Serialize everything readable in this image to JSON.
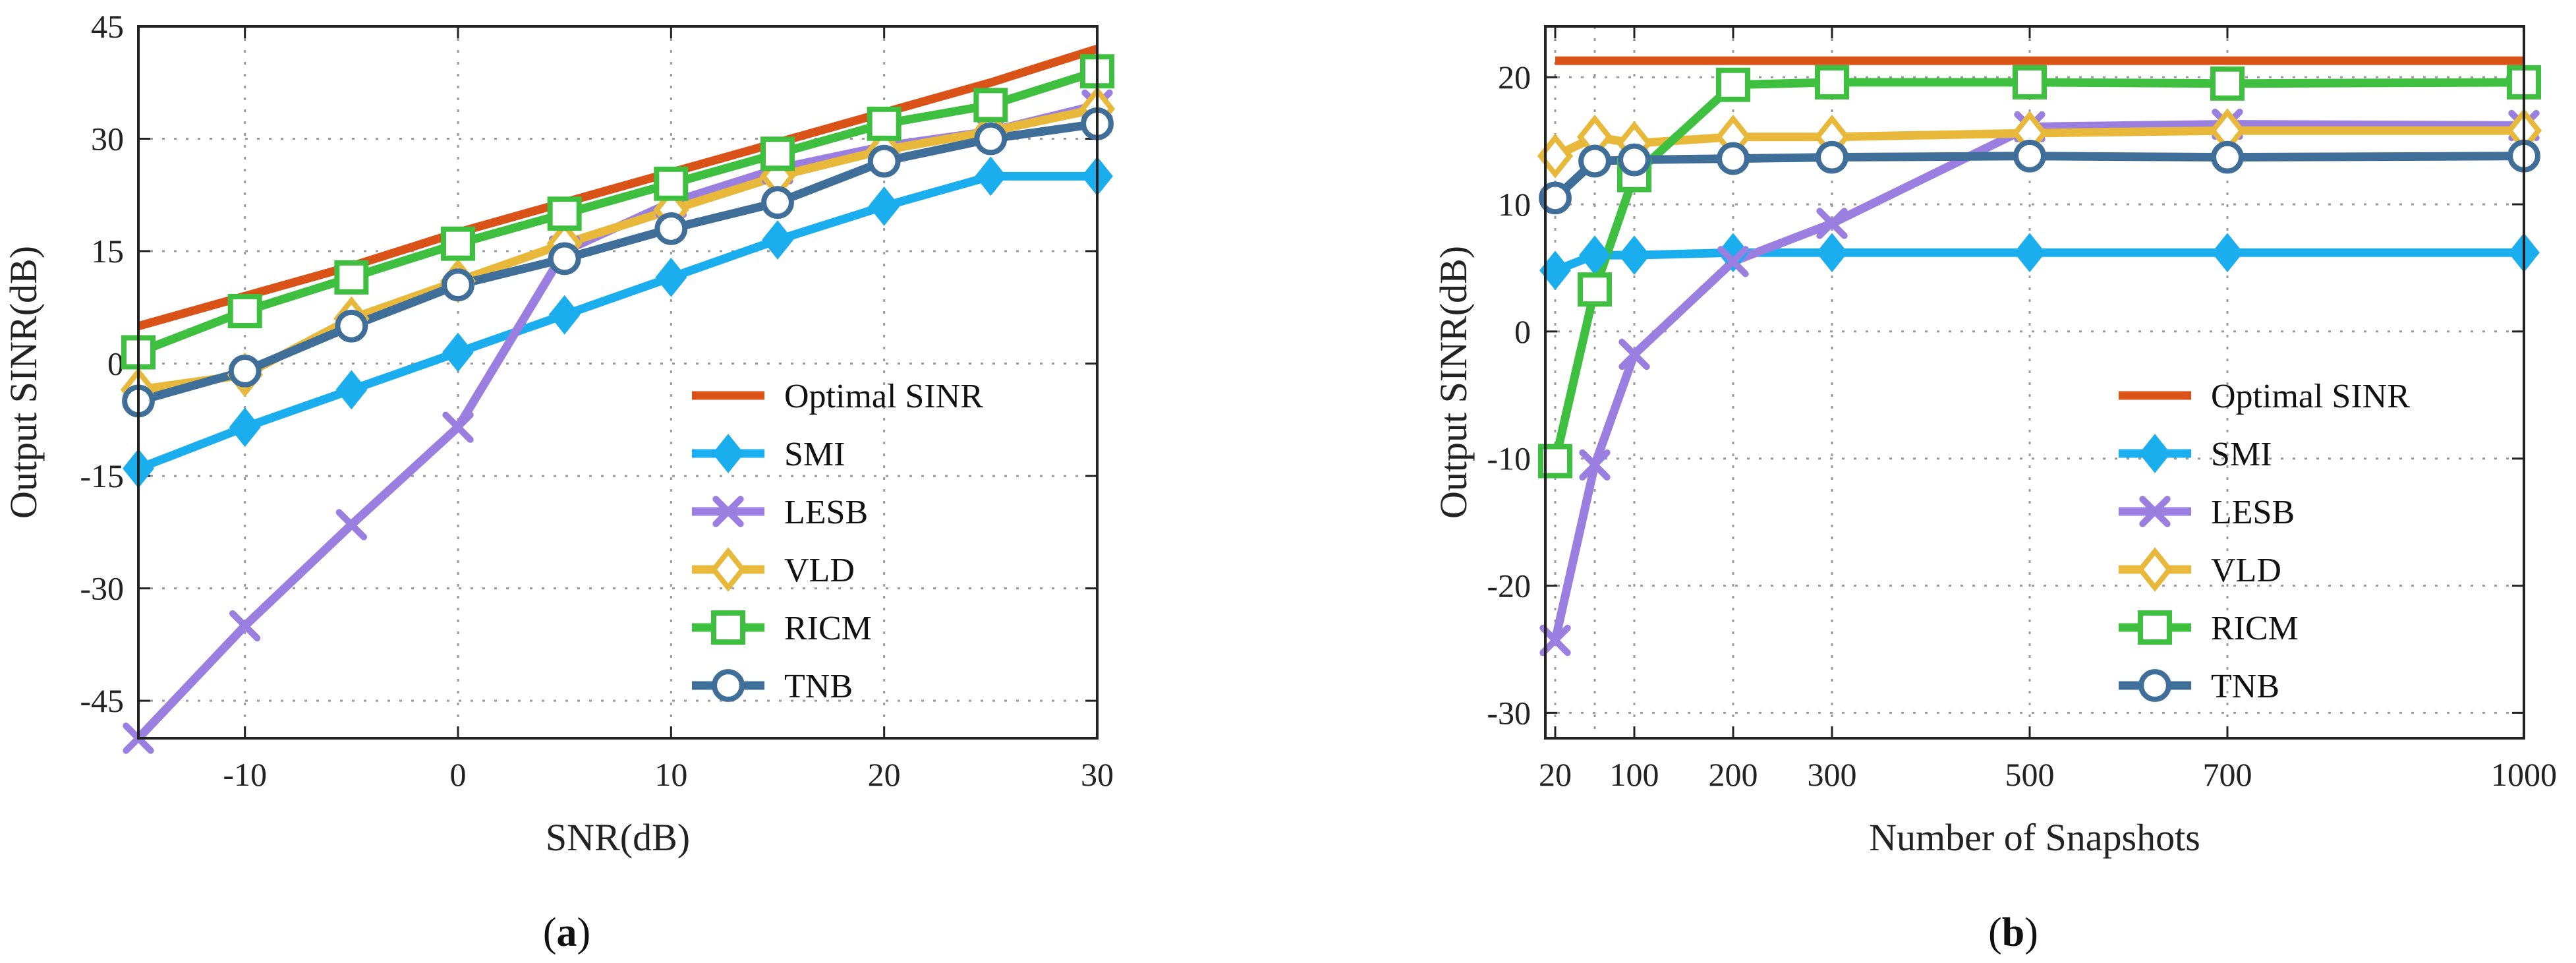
{
  "colors": {
    "Optimal SINR": "#D95319",
    "SMI": "#1AAEEF",
    "LESB": "#9A7FE0",
    "VLD": "#E8B83A",
    "RICM": "#3FBF3F",
    "TNB": "#3F6F99"
  },
  "markers": {
    "Optimal SINR": "none",
    "SMI": "diamond",
    "LESB": "x-cross",
    "VLD": "diamond-open",
    "RICM": "square-open",
    "TNB": "circle-open"
  },
  "chart_data": [
    {
      "type": "line",
      "caption_prefix": "(",
      "caption_letter": "a",
      "caption_suffix": ")",
      "xlabel": "SNR(dB)",
      "ylabel": "Output SINR(dB)",
      "xlim": [
        -15,
        30
      ],
      "ylim": [
        -50,
        45
      ],
      "xticks": [
        -10,
        0,
        10,
        20,
        30
      ],
      "xtick_labels": [
        "-10",
        "0",
        "10",
        "20",
        "30"
      ],
      "yticks": [
        -45,
        -30,
        -15,
        0,
        15,
        30,
        45
      ],
      "ytick_labels": [
        "-45",
        "-30",
        "-15",
        "0",
        "15",
        "30",
        "45"
      ],
      "grid": true,
      "legend_position": "bottom-right",
      "x": [
        -15,
        -10,
        -5,
        0,
        5,
        10,
        15,
        20,
        25,
        30
      ],
      "series": [
        {
          "name": "Optimal SINR",
          "values": [
            5,
            9,
            13,
            17.5,
            21.5,
            25.5,
            29.5,
            33.5,
            37.5,
            42
          ]
        },
        {
          "name": "SMI",
          "values": [
            -14,
            -8.5,
            -3.5,
            1.5,
            6.5,
            11.5,
            16.5,
            21,
            25,
            25
          ]
        },
        {
          "name": "LESB",
          "values": [
            -50,
            -35,
            -21.5,
            -8.5,
            15,
            21.5,
            26,
            29,
            31,
            34.5
          ]
        },
        {
          "name": "VLD",
          "values": [
            -3.5,
            -1.5,
            6,
            11,
            16,
            20.5,
            25,
            28.5,
            31,
            34
          ]
        },
        {
          "name": "RICM",
          "values": [
            1.5,
            7,
            11.5,
            16,
            20,
            24,
            28,
            32,
            34.5,
            39
          ]
        },
        {
          "name": "TNB",
          "values": [
            -5,
            -1,
            5,
            10.5,
            14,
            18,
            21.5,
            27,
            30,
            32
          ]
        }
      ]
    },
    {
      "type": "line",
      "caption_prefix": "(",
      "caption_letter": "b",
      "caption_suffix": ")",
      "xlabel": "Number of Snapshots",
      "ylabel": "Output SINR(dB)",
      "xlim": [
        10,
        1000
      ],
      "ylim": [
        -32,
        24
      ],
      "xticks": [
        20,
        100,
        200,
        300,
        500,
        700,
        1000
      ],
      "xtick_labels": [
        "20",
        "100",
        "200",
        "300",
        "500",
        "700",
        "1000"
      ],
      "xgrid": [
        20,
        60,
        100,
        200,
        300,
        500,
        700,
        1000
      ],
      "yticks": [
        -30,
        -20,
        -10,
        0,
        10,
        20
      ],
      "ytick_labels": [
        "-30",
        "-20",
        "-10",
        "0",
        "10",
        "20"
      ],
      "grid": true,
      "legend_position": "bottom-right",
      "x": [
        20,
        60,
        100,
        200,
        300,
        500,
        700,
        1000
      ],
      "series": [
        {
          "name": "Optimal SINR",
          "values": [
            21.3,
            21.3,
            21.3,
            21.3,
            21.3,
            21.3,
            21.3,
            21.3
          ]
        },
        {
          "name": "SMI",
          "values": [
            4.8,
            6,
            6,
            6.2,
            6.2,
            6.2,
            6.2,
            6.2
          ]
        },
        {
          "name": "LESB",
          "values": [
            -24.3,
            -10.5,
            -1.8,
            5.5,
            8.5,
            16.1,
            16.3,
            16.2
          ]
        },
        {
          "name": "VLD",
          "values": [
            13.8,
            15.3,
            14.8,
            15.3,
            15.3,
            15.6,
            15.8,
            15.8
          ]
        },
        {
          "name": "RICM",
          "values": [
            -10.2,
            3.3,
            12.3,
            19.4,
            19.6,
            19.6,
            19.5,
            19.6
          ]
        },
        {
          "name": "TNB",
          "values": [
            10.5,
            13.4,
            13.5,
            13.6,
            13.7,
            13.8,
            13.7,
            13.8
          ]
        }
      ]
    }
  ]
}
